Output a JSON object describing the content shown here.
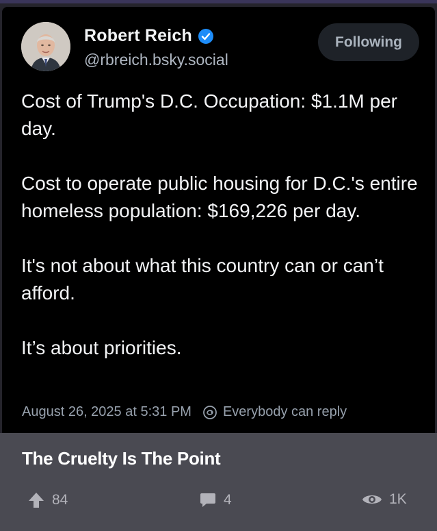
{
  "author": {
    "display_name": "Robert Reich",
    "handle": "@rbreich.bsky.social",
    "verified": true
  },
  "follow_button": {
    "label": "Following"
  },
  "post": {
    "paragraphs": [
      "Cost of Trump's D.C. Occupation: $1.1M per day.",
      "Cost to operate public housing for D.C.'s entire homeless population: $169,226 per day.",
      "It's not about what this country can or can’t afford.",
      "It’s about priorities."
    ],
    "timestamp": "August 26, 2025 at 5:31 PM",
    "reply_setting": "Everybody can reply"
  },
  "share": {
    "caption": "The Cruelty Is The Point",
    "upvotes": "84",
    "comments": "4",
    "views": "1K"
  },
  "colors": {
    "verified_blue": "#1d8cf8",
    "post_background": "#000000",
    "caption_background": "#4a4a52"
  },
  "icons": [
    "verified-icon",
    "reply-settings-icon",
    "upvote-icon",
    "comment-icon",
    "views-icon"
  ]
}
